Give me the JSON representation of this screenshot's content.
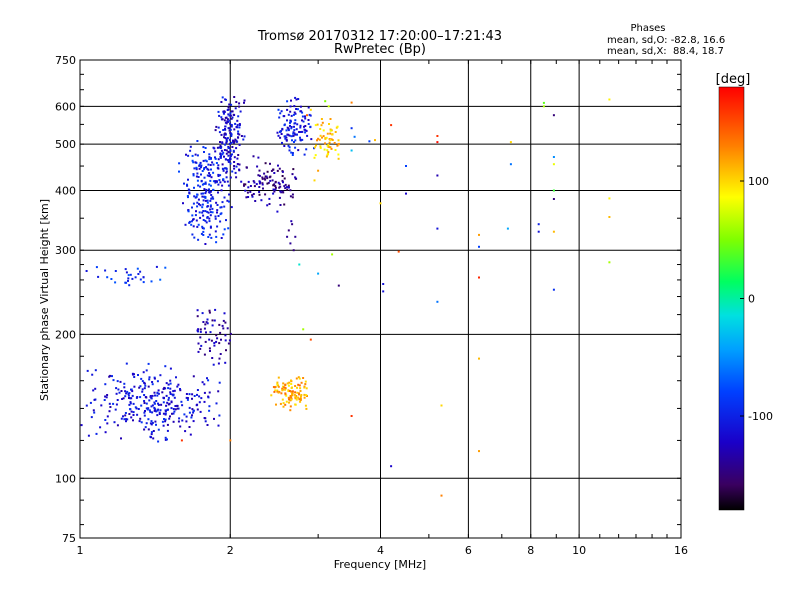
{
  "chart_data": {
    "type": "scatter",
    "title": "Tromsø 20170312 17:20:00–17:21:43",
    "subtitle": "RwPretec (Bp)",
    "xlabel": "Frequency [MHz]",
    "ylabel": "Stationary phase Virtual Height [km]",
    "x_scale": "log",
    "y_scale": "log",
    "xlim": [
      1,
      16
    ],
    "ylim": [
      75,
      750
    ],
    "x_ticks": [
      1,
      2,
      4,
      6,
      8,
      10,
      16
    ],
    "y_ticks": [
      75,
      100,
      200,
      300,
      400,
      500,
      600,
      750
    ],
    "x_gridlines": [
      2,
      4,
      6,
      8,
      10
    ],
    "y_gridlines": [
      100,
      200,
      300,
      400,
      500,
      600
    ],
    "phases": {
      "heading": "Phases",
      "line_o": "mean, sd,O: -82.8, 16.6",
      "line_x": "mean, sd,X:  88.4, 18.7"
    },
    "colorbar": {
      "label": "[deg]",
      "range": [
        -180,
        180
      ],
      "ticks": [
        {
          "value": 100,
          "label": "100"
        },
        {
          "value": 0,
          "label": "0"
        },
        {
          "value": -100,
          "label": "-100"
        }
      ]
    },
    "clusters": [
      {
        "name": "",
        "fmin": 1.0,
        "fmax": 1.95,
        "hmin": 118,
        "hmax": 175,
        "phase": -110,
        "n": 320
      },
      {
        "name": "",
        "fmin": 1.65,
        "fmax": 2.05,
        "hmin": 170,
        "hmax": 232,
        "phase": -130,
        "n": 60
      },
      {
        "name": "",
        "fmin": 2.4,
        "fmax": 2.9,
        "hmin": 138,
        "hmax": 165,
        "phase": 115,
        "n": 110
      },
      {
        "name": "",
        "fmin": 1.55,
        "fmax": 2.05,
        "hmin": 300,
        "hmax": 520,
        "phase": -100,
        "n": 240
      },
      {
        "name": "",
        "fmin": 1.85,
        "fmax": 2.15,
        "hmin": 420,
        "hmax": 645,
        "phase": -115,
        "n": 180
      },
      {
        "name": "",
        "fmin": 2.05,
        "fmax": 2.75,
        "hmin": 360,
        "hmax": 480,
        "phase": -140,
        "n": 110
      },
      {
        "name": "",
        "fmin": 2.45,
        "fmax": 2.95,
        "hmin": 460,
        "hmax": 645,
        "phase": -105,
        "n": 120
      },
      {
        "name": "",
        "fmin": 2.9,
        "fmax": 3.35,
        "hmin": 460,
        "hmax": 570,
        "phase": 105,
        "n": 60
      },
      {
        "name": "",
        "fmin": 1.0,
        "fmax": 1.6,
        "hmin": 250,
        "hmax": 280,
        "phase": -90,
        "n": 30
      }
    ],
    "points": [
      {
        "x": 4.2,
        "y": 106,
        "phase": -120
      },
      {
        "x": 4.05,
        "y": 246,
        "phase": -110
      },
      {
        "x": 4.05,
        "y": 255,
        "phase": -110
      },
      {
        "x": 4.5,
        "y": 394,
        "phase": -120
      },
      {
        "x": 4.5,
        "y": 450,
        "phase": -80
      },
      {
        "x": 5.2,
        "y": 430,
        "phase": -130
      },
      {
        "x": 5.2,
        "y": 333,
        "phase": -110
      },
      {
        "x": 5.2,
        "y": 234,
        "phase": -60
      },
      {
        "x": 5.2,
        "y": 505,
        "phase": 175
      },
      {
        "x": 5.2,
        "y": 520,
        "phase": 160
      },
      {
        "x": 5.3,
        "y": 92,
        "phase": 130
      },
      {
        "x": 5.3,
        "y": 142,
        "phase": 100
      },
      {
        "x": 6.3,
        "y": 323,
        "phase": 120
      },
      {
        "x": 6.3,
        "y": 305,
        "phase": -80
      },
      {
        "x": 6.3,
        "y": 263,
        "phase": 165
      },
      {
        "x": 6.3,
        "y": 178,
        "phase": 110
      },
      {
        "x": 6.3,
        "y": 114,
        "phase": 120
      },
      {
        "x": 7.3,
        "y": 454,
        "phase": -60
      },
      {
        "x": 7.3,
        "y": 505,
        "phase": 100
      },
      {
        "x": 7.2,
        "y": 333,
        "phase": -40
      },
      {
        "x": 8.3,
        "y": 328,
        "phase": -110
      },
      {
        "x": 8.3,
        "y": 340,
        "phase": -100
      },
      {
        "x": 8.5,
        "y": 610,
        "phase": 40
      },
      {
        "x": 8.5,
        "y": 600,
        "phase": 60
      },
      {
        "x": 8.9,
        "y": 575,
        "phase": -150
      },
      {
        "x": 8.9,
        "y": 470,
        "phase": -50
      },
      {
        "x": 8.9,
        "y": 454,
        "phase": 80
      },
      {
        "x": 8.9,
        "y": 400,
        "phase": 30
      },
      {
        "x": 8.9,
        "y": 384,
        "phase": -150
      },
      {
        "x": 8.9,
        "y": 328,
        "phase": 110
      },
      {
        "x": 8.9,
        "y": 248,
        "phase": -90
      },
      {
        "x": 11.5,
        "y": 620,
        "phase": 90
      },
      {
        "x": 11.5,
        "y": 385,
        "phase": 90
      },
      {
        "x": 11.5,
        "y": 352,
        "phase": 110
      },
      {
        "x": 11.5,
        "y": 283,
        "phase": 60
      },
      {
        "x": 3.5,
        "y": 611,
        "phase": 130
      },
      {
        "x": 3.5,
        "y": 540,
        "phase": -90
      },
      {
        "x": 3.55,
        "y": 518,
        "phase": -60
      },
      {
        "x": 3.5,
        "y": 485,
        "phase": -30
      },
      {
        "x": 3.8,
        "y": 507,
        "phase": -80
      },
      {
        "x": 3.9,
        "y": 510,
        "phase": 110
      },
      {
        "x": 4.0,
        "y": 376,
        "phase": 100
      },
      {
        "x": 4.2,
        "y": 548,
        "phase": 160
      },
      {
        "x": 4.35,
        "y": 298,
        "phase": 150
      },
      {
        "x": 3.5,
        "y": 135,
        "phase": 160
      },
      {
        "x": 3.3,
        "y": 253,
        "phase": -150
      },
      {
        "x": 3.0,
        "y": 268,
        "phase": -40
      },
      {
        "x": 3.2,
        "y": 294,
        "phase": 60
      },
      {
        "x": 2.75,
        "y": 280,
        "phase": -10
      },
      {
        "x": 2.9,
        "y": 195,
        "phase": 150
      },
      {
        "x": 2.8,
        "y": 205,
        "phase": 60
      },
      {
        "x": 2.0,
        "y": 120,
        "phase": 130
      },
      {
        "x": 1.6,
        "y": 120,
        "phase": 160
      },
      {
        "x": 2.6,
        "y": 320,
        "phase": -140
      },
      {
        "x": 2.62,
        "y": 330,
        "phase": -150
      },
      {
        "x": 2.64,
        "y": 310,
        "phase": -140
      },
      {
        "x": 2.66,
        "y": 340,
        "phase": -145
      },
      {
        "x": 2.68,
        "y": 300,
        "phase": -150
      },
      {
        "x": 2.7,
        "y": 320,
        "phase": -140
      },
      {
        "x": 2.65,
        "y": 345,
        "phase": -130
      },
      {
        "x": 3.1,
        "y": 615,
        "phase": 50
      },
      {
        "x": 3.15,
        "y": 600,
        "phase": 70
      },
      {
        "x": 2.85,
        "y": 575,
        "phase": 140
      },
      {
        "x": 2.9,
        "y": 590,
        "phase": 100
      },
      {
        "x": 3.0,
        "y": 440,
        "phase": 120
      },
      {
        "x": 2.95,
        "y": 420,
        "phase": 100
      }
    ]
  }
}
